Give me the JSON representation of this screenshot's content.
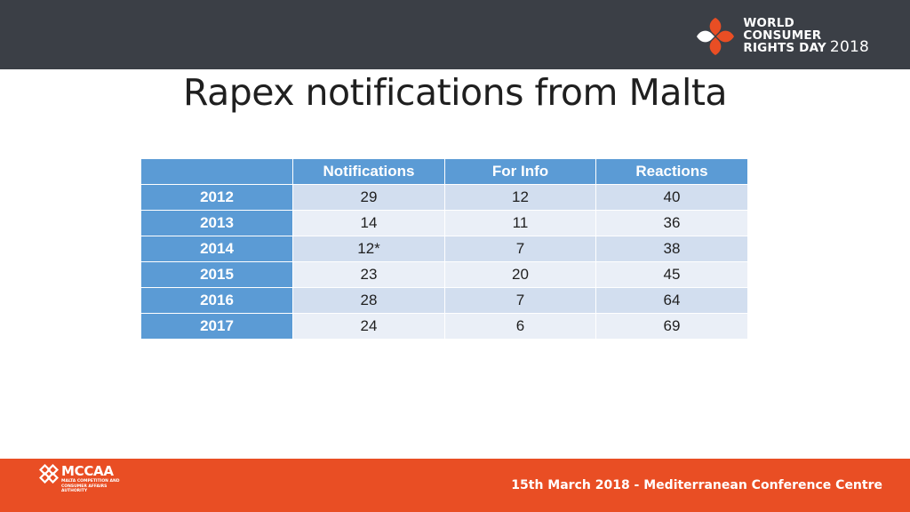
{
  "header": {
    "logo": {
      "line1": "WORLD",
      "line2": "CONSUMER",
      "line3": "RIGHTS DAY",
      "year": "2018",
      "icon": "wcrd-emblem-icon",
      "color": "#e94e24"
    }
  },
  "slide": {
    "title": "Rapex notifications from Malta"
  },
  "table": {
    "columns": [
      "",
      "Notifications",
      "For Info",
      "Reactions"
    ],
    "rows": [
      {
        "year": "2012",
        "notifications": "29",
        "for_info": "12",
        "reactions": "40"
      },
      {
        "year": "2013",
        "notifications": "14",
        "for_info": "11",
        "reactions": "36"
      },
      {
        "year": "2014",
        "notifications": "12*",
        "for_info": "7",
        "reactions": "38"
      },
      {
        "year": "2015",
        "notifications": "23",
        "for_info": "20",
        "reactions": "45"
      },
      {
        "year": "2016",
        "notifications": "28",
        "for_info": "7",
        "reactions": "64"
      },
      {
        "year": "2017",
        "notifications": "24",
        "for_info": "6",
        "reactions": "69"
      }
    ],
    "header_color": "#5b9bd5",
    "row_colors": [
      "#d2deef",
      "#eaeff7"
    ]
  },
  "footer": {
    "org": {
      "name": "MCCAA",
      "subtitle": "MALTA COMPETITION AND CONSUMER AFFAIRS AUTHORITY",
      "icon": "mccaa-knot-icon"
    },
    "event": "15th March 2018 - Mediterranean Conference Centre",
    "color": "#e94e24"
  }
}
